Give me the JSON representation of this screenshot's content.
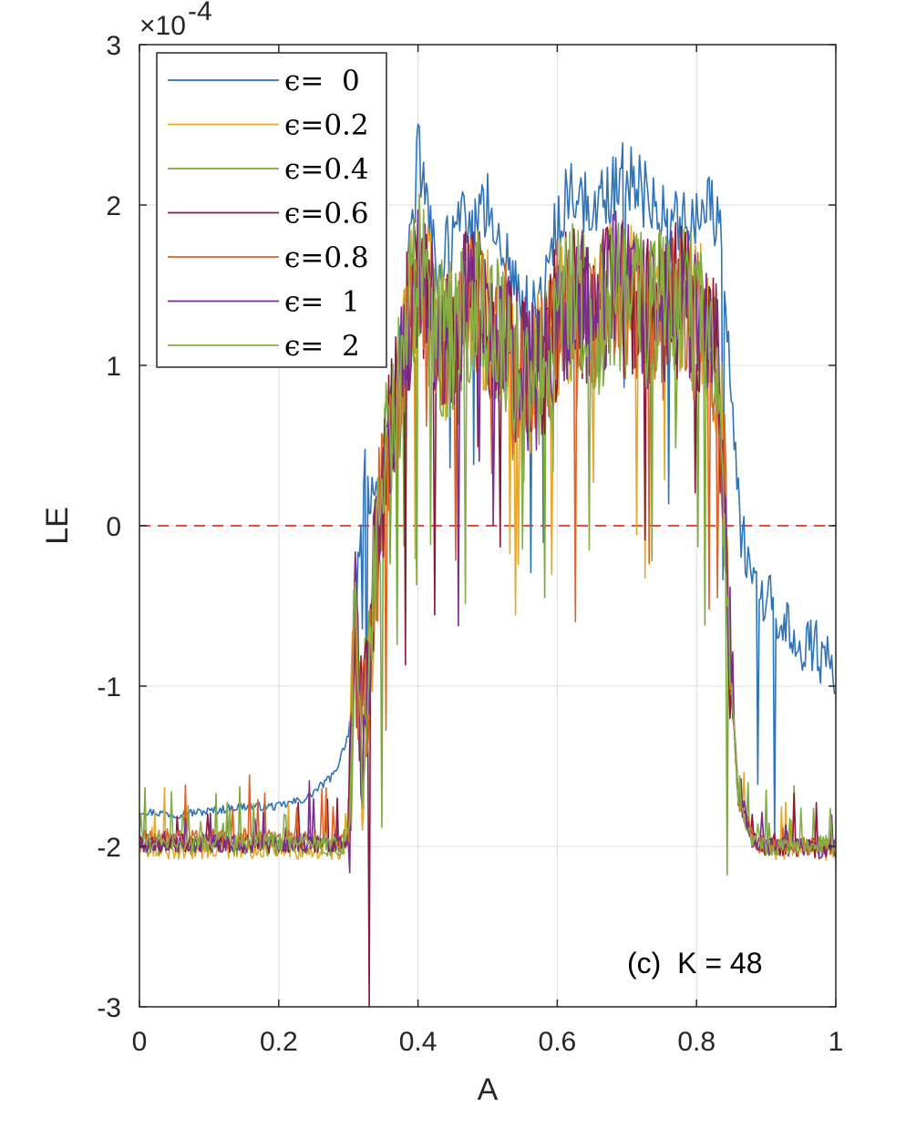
{
  "chart_data": {
    "type": "line",
    "xlabel": "A",
    "ylabel": "LE",
    "xlim": [
      0,
      1
    ],
    "ylim": [
      -3,
      3
    ],
    "y_multiplier_label": "×10",
    "y_multiplier_exponent": "-4",
    "xticks": [
      0,
      0.2,
      0.4,
      0.6,
      0.8,
      1
    ],
    "xtick_labels": [
      "0",
      "0.2",
      "0.4",
      "0.6",
      "0.8",
      "1"
    ],
    "yticks": [
      -3,
      -2,
      -1,
      0,
      1,
      2,
      3
    ],
    "ytick_labels": [
      "-3",
      "-2",
      "-1",
      "0",
      "1",
      "2",
      "3"
    ],
    "grid": true,
    "legend_position": "top-left",
    "reference_line": {
      "y": 0,
      "color": "#e8302a",
      "style": "dashed"
    },
    "annotation": "(c)  K = 48",
    "series": [
      {
        "name": "ϵ=  0",
        "color": "#2f73b8",
        "anchors": [
          [
            0.0,
            -1.78
          ],
          [
            0.05,
            -1.8
          ],
          [
            0.1,
            -1.78
          ],
          [
            0.15,
            -1.75
          ],
          [
            0.2,
            -1.75
          ],
          [
            0.24,
            -1.7
          ],
          [
            0.28,
            -1.55
          ],
          [
            0.3,
            -1.3
          ],
          [
            0.31,
            -0.6
          ],
          [
            0.32,
            0.3
          ],
          [
            0.33,
            0.2
          ],
          [
            0.34,
            0.1
          ],
          [
            0.35,
            0.2
          ],
          [
            0.36,
            0.6
          ],
          [
            0.37,
            1.0
          ],
          [
            0.38,
            1.3
          ],
          [
            0.39,
            1.8
          ],
          [
            0.4,
            2.3
          ],
          [
            0.41,
            2.2
          ],
          [
            0.42,
            1.8
          ],
          [
            0.43,
            1.6
          ],
          [
            0.45,
            1.8
          ],
          [
            0.47,
            1.9
          ],
          [
            0.49,
            1.9
          ],
          [
            0.5,
            2.0
          ],
          [
            0.52,
            1.8
          ],
          [
            0.54,
            1.5
          ],
          [
            0.56,
            1.3
          ],
          [
            0.58,
            1.4
          ],
          [
            0.6,
            1.9
          ],
          [
            0.62,
            2.1
          ],
          [
            0.64,
            2.0
          ],
          [
            0.66,
            2.0
          ],
          [
            0.68,
            2.1
          ],
          [
            0.7,
            2.2
          ],
          [
            0.72,
            2.1
          ],
          [
            0.74,
            2.0
          ],
          [
            0.76,
            2.0
          ],
          [
            0.78,
            1.9
          ],
          [
            0.8,
            1.9
          ],
          [
            0.82,
            2.0
          ],
          [
            0.83,
            1.9
          ],
          [
            0.84,
            1.6
          ],
          [
            0.85,
            0.8
          ],
          [
            0.86,
            0.1
          ],
          [
            0.87,
            -0.2
          ],
          [
            0.89,
            -0.4
          ],
          [
            0.92,
            -0.6
          ],
          [
            0.95,
            -0.7
          ],
          [
            0.98,
            -0.8
          ],
          [
            1.0,
            -0.9
          ]
        ],
        "noise": 0.22
      },
      {
        "name": "ϵ=0.2",
        "color": "#e6a92a",
        "anchors": [
          [
            0.0,
            -2.02
          ],
          [
            0.29,
            -2.02
          ],
          [
            0.3,
            -1.95
          ],
          [
            0.31,
            -0.6
          ],
          [
            0.32,
            -1.4
          ],
          [
            0.33,
            -0.8
          ],
          [
            0.34,
            -0.2
          ],
          [
            0.35,
            0.3
          ],
          [
            0.37,
            0.8
          ],
          [
            0.39,
            1.4
          ],
          [
            0.4,
            1.6
          ],
          [
            0.42,
            1.3
          ],
          [
            0.44,
            1.1
          ],
          [
            0.46,
            1.3
          ],
          [
            0.48,
            1.4
          ],
          [
            0.5,
            1.3
          ],
          [
            0.52,
            1.2
          ],
          [
            0.54,
            1.0
          ],
          [
            0.56,
            0.9
          ],
          [
            0.58,
            1.0
          ],
          [
            0.6,
            1.3
          ],
          [
            0.62,
            1.4
          ],
          [
            0.64,
            1.4
          ],
          [
            0.66,
            1.3
          ],
          [
            0.68,
            1.5
          ],
          [
            0.7,
            1.4
          ],
          [
            0.72,
            1.4
          ],
          [
            0.74,
            1.3
          ],
          [
            0.76,
            1.4
          ],
          [
            0.78,
            1.4
          ],
          [
            0.8,
            1.3
          ],
          [
            0.82,
            1.2
          ],
          [
            0.83,
            1.0
          ],
          [
            0.84,
            0.2
          ],
          [
            0.85,
            -1.0
          ],
          [
            0.86,
            -1.7
          ],
          [
            0.88,
            -1.95
          ],
          [
            0.9,
            -2.02
          ],
          [
            1.0,
            -2.04
          ]
        ],
        "noise": 0.5
      },
      {
        "name": "ϵ=0.4",
        "color": "#7aab3a",
        "anchors": [
          [
            0.0,
            -2.0
          ],
          [
            0.29,
            -2.0
          ],
          [
            0.3,
            -1.95
          ],
          [
            0.31,
            -0.6
          ],
          [
            0.32,
            -1.4
          ],
          [
            0.33,
            -0.8
          ],
          [
            0.34,
            -0.2
          ],
          [
            0.35,
            0.3
          ],
          [
            0.37,
            0.8
          ],
          [
            0.39,
            1.4
          ],
          [
            0.4,
            1.6
          ],
          [
            0.42,
            1.3
          ],
          [
            0.44,
            1.1
          ],
          [
            0.46,
            1.3
          ],
          [
            0.48,
            1.4
          ],
          [
            0.5,
            1.3
          ],
          [
            0.52,
            1.2
          ],
          [
            0.54,
            1.0
          ],
          [
            0.56,
            0.9
          ],
          [
            0.58,
            1.0
          ],
          [
            0.6,
            1.3
          ],
          [
            0.62,
            1.4
          ],
          [
            0.64,
            1.4
          ],
          [
            0.66,
            1.3
          ],
          [
            0.68,
            1.5
          ],
          [
            0.7,
            1.4
          ],
          [
            0.72,
            1.4
          ],
          [
            0.74,
            1.3
          ],
          [
            0.76,
            1.4
          ],
          [
            0.78,
            1.4
          ],
          [
            0.8,
            1.3
          ],
          [
            0.82,
            1.2
          ],
          [
            0.83,
            1.0
          ],
          [
            0.84,
            0.2
          ],
          [
            0.85,
            -1.0
          ],
          [
            0.86,
            -1.7
          ],
          [
            0.88,
            -1.95
          ],
          [
            0.9,
            -2.0
          ],
          [
            1.0,
            -1.99
          ]
        ],
        "noise": 0.5
      },
      {
        "name": "ϵ=0.6",
        "color": "#8b1a3a",
        "anchors": [
          [
            0.0,
            -1.98
          ],
          [
            0.29,
            -1.98
          ],
          [
            0.3,
            -1.95
          ],
          [
            0.31,
            -0.6
          ],
          [
            0.32,
            -1.4
          ],
          [
            0.33,
            -0.8
          ],
          [
            0.34,
            -0.2
          ],
          [
            0.35,
            0.3
          ],
          [
            0.37,
            0.8
          ],
          [
            0.39,
            1.4
          ],
          [
            0.4,
            1.6
          ],
          [
            0.42,
            1.3
          ],
          [
            0.44,
            1.1
          ],
          [
            0.46,
            1.3
          ],
          [
            0.48,
            1.4
          ],
          [
            0.5,
            1.3
          ],
          [
            0.52,
            1.2
          ],
          [
            0.54,
            1.0
          ],
          [
            0.56,
            0.9
          ],
          [
            0.58,
            1.0
          ],
          [
            0.6,
            1.3
          ],
          [
            0.62,
            1.4
          ],
          [
            0.64,
            1.4
          ],
          [
            0.66,
            1.3
          ],
          [
            0.68,
            1.5
          ],
          [
            0.7,
            1.4
          ],
          [
            0.72,
            1.4
          ],
          [
            0.74,
            1.3
          ],
          [
            0.76,
            1.4
          ],
          [
            0.78,
            1.4
          ],
          [
            0.8,
            1.3
          ],
          [
            0.82,
            1.2
          ],
          [
            0.83,
            1.0
          ],
          [
            0.84,
            0.2
          ],
          [
            0.85,
            -1.0
          ],
          [
            0.86,
            -1.7
          ],
          [
            0.88,
            -1.95
          ],
          [
            0.9,
            -2.0
          ],
          [
            1.0,
            -2.01
          ]
        ],
        "noise": 0.5
      },
      {
        "name": "ϵ=0.8",
        "color": "#d9652a",
        "anchors": [
          [
            0.0,
            -1.95
          ],
          [
            0.29,
            -1.95
          ],
          [
            0.3,
            -1.95
          ],
          [
            0.31,
            -0.6
          ],
          [
            0.32,
            -1.4
          ],
          [
            0.33,
            -0.8
          ],
          [
            0.34,
            -0.2
          ],
          [
            0.35,
            0.3
          ],
          [
            0.37,
            0.8
          ],
          [
            0.39,
            1.4
          ],
          [
            0.4,
            1.6
          ],
          [
            0.42,
            1.3
          ],
          [
            0.44,
            1.1
          ],
          [
            0.46,
            1.3
          ],
          [
            0.48,
            1.4
          ],
          [
            0.5,
            1.3
          ],
          [
            0.52,
            1.2
          ],
          [
            0.54,
            1.0
          ],
          [
            0.56,
            0.9
          ],
          [
            0.58,
            1.0
          ],
          [
            0.6,
            1.3
          ],
          [
            0.62,
            1.4
          ],
          [
            0.64,
            1.4
          ],
          [
            0.66,
            1.3
          ],
          [
            0.68,
            1.5
          ],
          [
            0.7,
            1.4
          ],
          [
            0.72,
            1.4
          ],
          [
            0.74,
            1.3
          ],
          [
            0.76,
            1.4
          ],
          [
            0.78,
            1.4
          ],
          [
            0.8,
            1.3
          ],
          [
            0.82,
            1.2
          ],
          [
            0.83,
            1.0
          ],
          [
            0.84,
            0.2
          ],
          [
            0.85,
            -1.0
          ],
          [
            0.86,
            -1.7
          ],
          [
            0.88,
            -1.95
          ],
          [
            0.9,
            -2.0
          ],
          [
            1.0,
            -2.0
          ]
        ],
        "noise": 0.5
      },
      {
        "name": "ϵ=  1",
        "color": "#7a2d8f",
        "anchors": [
          [
            0.0,
            -1.98
          ],
          [
            0.29,
            -1.98
          ],
          [
            0.3,
            -1.95
          ],
          [
            0.31,
            -0.6
          ],
          [
            0.32,
            -1.4
          ],
          [
            0.33,
            -0.8
          ],
          [
            0.34,
            -0.2
          ],
          [
            0.35,
            0.3
          ],
          [
            0.37,
            0.8
          ],
          [
            0.39,
            1.4
          ],
          [
            0.4,
            1.6
          ],
          [
            0.42,
            1.3
          ],
          [
            0.44,
            1.1
          ],
          [
            0.46,
            1.3
          ],
          [
            0.48,
            1.4
          ],
          [
            0.5,
            1.3
          ],
          [
            0.52,
            1.2
          ],
          [
            0.54,
            1.0
          ],
          [
            0.56,
            0.9
          ],
          [
            0.58,
            1.0
          ],
          [
            0.6,
            1.3
          ],
          [
            0.62,
            1.4
          ],
          [
            0.64,
            1.4
          ],
          [
            0.66,
            1.3
          ],
          [
            0.68,
            1.5
          ],
          [
            0.7,
            1.4
          ],
          [
            0.72,
            1.4
          ],
          [
            0.74,
            1.3
          ],
          [
            0.76,
            1.4
          ],
          [
            0.78,
            1.4
          ],
          [
            0.8,
            1.3
          ],
          [
            0.82,
            1.2
          ],
          [
            0.83,
            1.0
          ],
          [
            0.84,
            0.2
          ],
          [
            0.85,
            -1.0
          ],
          [
            0.86,
            -1.7
          ],
          [
            0.88,
            -1.95
          ],
          [
            0.9,
            -2.0
          ],
          [
            1.0,
            -2.02
          ]
        ],
        "noise": 0.5
      },
      {
        "name": "ϵ=  2",
        "color": "#86b046",
        "anchors": [
          [
            0.0,
            -1.97
          ],
          [
            0.29,
            -1.97
          ],
          [
            0.3,
            -1.95
          ],
          [
            0.31,
            -0.6
          ],
          [
            0.32,
            -1.4
          ],
          [
            0.33,
            -0.8
          ],
          [
            0.34,
            -0.2
          ],
          [
            0.35,
            0.3
          ],
          [
            0.37,
            0.8
          ],
          [
            0.39,
            1.4
          ],
          [
            0.4,
            1.6
          ],
          [
            0.42,
            1.3
          ],
          [
            0.44,
            1.1
          ],
          [
            0.46,
            1.3
          ],
          [
            0.48,
            1.4
          ],
          [
            0.5,
            1.3
          ],
          [
            0.52,
            1.2
          ],
          [
            0.54,
            1.0
          ],
          [
            0.56,
            0.9
          ],
          [
            0.58,
            1.0
          ],
          [
            0.6,
            1.3
          ],
          [
            0.62,
            1.4
          ],
          [
            0.64,
            1.4
          ],
          [
            0.66,
            1.3
          ],
          [
            0.68,
            1.5
          ],
          [
            0.7,
            1.4
          ],
          [
            0.72,
            1.4
          ],
          [
            0.74,
            1.3
          ],
          [
            0.76,
            1.4
          ],
          [
            0.78,
            1.4
          ],
          [
            0.8,
            1.3
          ],
          [
            0.82,
            1.2
          ],
          [
            0.83,
            1.0
          ],
          [
            0.84,
            0.2
          ],
          [
            0.85,
            -1.0
          ],
          [
            0.86,
            -1.7
          ],
          [
            0.88,
            -1.95
          ],
          [
            0.9,
            -2.0
          ],
          [
            1.0,
            -1.98
          ]
        ],
        "noise": 0.5
      }
    ]
  }
}
